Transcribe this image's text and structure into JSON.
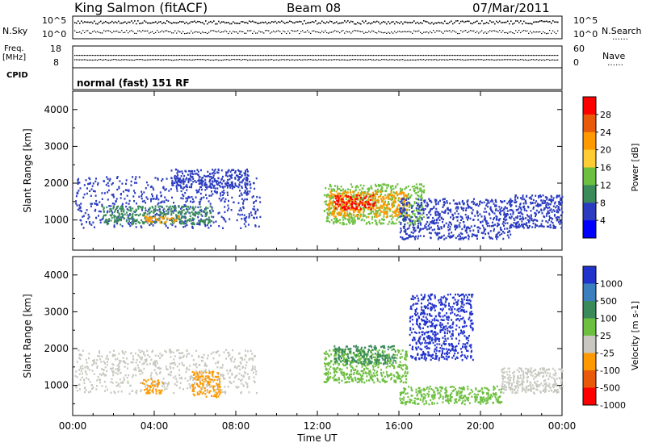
{
  "header": {
    "station": "King Salmon (fitACF)",
    "beam": "Beam 08",
    "date": "07/Mar/2011",
    "mode": "normal (fast) 151 RF"
  },
  "side_labels": {
    "nsky": "N.Sky",
    "nsearch": "N.Search",
    "nsearch_dots": "……",
    "freq_line1": "Freq.",
    "freq_line2": "[MHz]",
    "nave": "Nave",
    "nave_dots": "……",
    "cpid": "CPID"
  },
  "noise_axis": {
    "left_ticks": [
      "10^5",
      "10^0"
    ],
    "right_ticks": [
      "10^5",
      "10^0"
    ]
  },
  "freq_axis": {
    "left_ticks": [
      "18",
      "8"
    ],
    "right_ticks": [
      "60",
      "0"
    ]
  },
  "chart_data": [
    {
      "type": "heatmap",
      "name": "power-panel",
      "ylabel": "Slant Range [km]",
      "ytick_labels": [
        "1000",
        "2000",
        "3000",
        "4000"
      ],
      "xlabel": "Time UT",
      "xtick_labels": [
        "00:00",
        "04:00",
        "08:00",
        "12:00",
        "16:00",
        "20:00",
        "00:00"
      ],
      "xlim": [
        0,
        24
      ],
      "ylim": [
        180,
        4500
      ],
      "colorbar": {
        "label": "Power [dB]",
        "ticks": [
          "28",
          "24",
          "20",
          "16",
          "12",
          "8",
          "4"
        ],
        "colors": [
          "#ff0000",
          "#e85a0a",
          "#ff9900",
          "#ffcc33",
          "#6dbf3f",
          "#3a8a5a",
          "#2b3cc0",
          "#0000ff"
        ]
      },
      "regions": [
        {
          "t0": 0.1,
          "t1": 9.2,
          "r0": 800,
          "r1": 2200,
          "color": "#2b3cc0"
        },
        {
          "t0": 1.4,
          "t1": 6.8,
          "r0": 900,
          "r1": 1400,
          "color": "#3a8a5a"
        },
        {
          "t0": 3.5,
          "t1": 5.2,
          "r0": 950,
          "r1": 1150,
          "color": "#ff9900"
        },
        {
          "t0": 4.8,
          "t1": 8.6,
          "r0": 1900,
          "r1": 2400,
          "color": "#2b3cc0"
        },
        {
          "t0": 12.3,
          "t1": 17.2,
          "r0": 900,
          "r1": 2000,
          "color": "#6dbf3f"
        },
        {
          "t0": 12.5,
          "t1": 16.4,
          "r0": 1100,
          "r1": 1800,
          "color": "#ff9900"
        },
        {
          "t0": 12.8,
          "t1": 14.8,
          "r0": 1300,
          "r1": 1700,
          "color": "#ff0000"
        },
        {
          "t0": 16.0,
          "t1": 21.5,
          "r0": 500,
          "r1": 1600,
          "color": "#2b3cc0"
        },
        {
          "t0": 21.4,
          "t1": 24.0,
          "r0": 800,
          "r1": 1700,
          "color": "#2b3cc0"
        }
      ]
    },
    {
      "type": "heatmap",
      "name": "velocity-panel",
      "ylabel": "Slant Range [km]",
      "ytick_labels": [
        "1000",
        "2000",
        "3000",
        "4000"
      ],
      "xlabel": "Time UT",
      "xtick_labels": [
        "00:00",
        "04:00",
        "08:00",
        "12:00",
        "16:00",
        "20:00",
        "00:00"
      ],
      "xlim": [
        0,
        24
      ],
      "ylim": [
        180,
        4500
      ],
      "colorbar": {
        "label": "Velocity [m s-1]",
        "ticks": [
          "1000",
          "500",
          "100",
          "25",
          "-25",
          "-100",
          "-500",
          "-1000"
        ],
        "colors": [
          "#2233cc",
          "#3c7fbf",
          "#3a8a5a",
          "#6dbf3f",
          "#c8c8c0",
          "#ff9900",
          "#e85a0a",
          "#ff0000"
        ]
      },
      "regions": [
        {
          "t0": 0.1,
          "t1": 9.0,
          "r0": 800,
          "r1": 2000,
          "color": "#c8c8c0"
        },
        {
          "t0": 3.4,
          "t1": 4.4,
          "r0": 800,
          "r1": 1200,
          "color": "#ff9900"
        },
        {
          "t0": 5.8,
          "t1": 7.2,
          "r0": 700,
          "r1": 1400,
          "color": "#ff9900"
        },
        {
          "t0": 12.3,
          "t1": 16.4,
          "r0": 1100,
          "r1": 2000,
          "color": "#6dbf3f"
        },
        {
          "t0": 12.8,
          "t1": 15.8,
          "r0": 1600,
          "r1": 2100,
          "color": "#3a8a5a"
        },
        {
          "t0": 16.0,
          "t1": 21.0,
          "r0": 500,
          "r1": 1000,
          "color": "#6dbf3f"
        },
        {
          "t0": 16.5,
          "t1": 19.6,
          "r0": 1700,
          "r1": 3500,
          "color": "#2233cc"
        },
        {
          "t0": 21.0,
          "t1": 24.0,
          "r0": 800,
          "r1": 1500,
          "color": "#c8c8c0"
        }
      ]
    }
  ]
}
